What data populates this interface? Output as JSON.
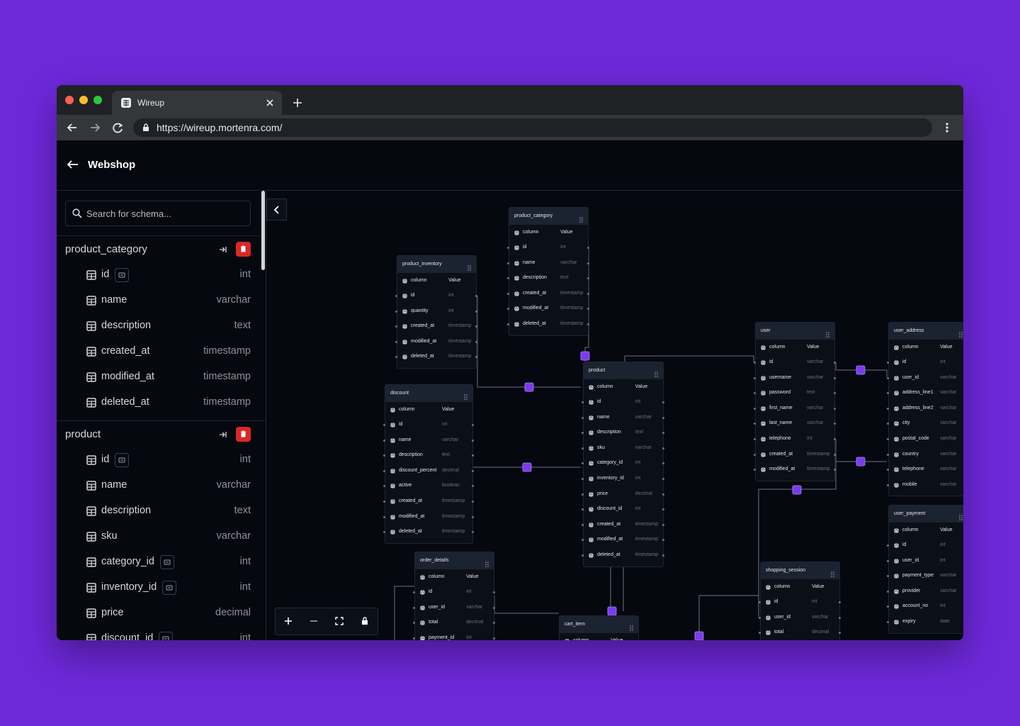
{
  "browser": {
    "tab_title": "Wireup",
    "url": "https://wireup.mortenra.com/"
  },
  "header": {
    "title": "Webshop"
  },
  "sidebar": {
    "search_placeholder": "Search for schema...",
    "tables": [
      {
        "name": "product_category",
        "fields": [
          {
            "name": "id",
            "type": "int",
            "key": true
          },
          {
            "name": "name",
            "type": "varchar"
          },
          {
            "name": "description",
            "type": "text"
          },
          {
            "name": "created_at",
            "type": "timestamp"
          },
          {
            "name": "modified_at",
            "type": "timestamp"
          },
          {
            "name": "deleted_at",
            "type": "timestamp"
          }
        ]
      },
      {
        "name": "product",
        "fields": [
          {
            "name": "id",
            "type": "int",
            "key": true
          },
          {
            "name": "name",
            "type": "varchar"
          },
          {
            "name": "description",
            "type": "text"
          },
          {
            "name": "sku",
            "type": "varchar"
          },
          {
            "name": "category_id",
            "type": "int",
            "key": true
          },
          {
            "name": "inventory_id",
            "type": "int",
            "key": true
          },
          {
            "name": "price",
            "type": "decimal"
          },
          {
            "name": "discount_id",
            "type": "int",
            "key": true
          }
        ]
      }
    ]
  },
  "canvas": {
    "tables": [
      {
        "name": "product_category",
        "header": [
          "column",
          "Value"
        ],
        "fields": [
          {
            "name": "id",
            "type": "int"
          },
          {
            "name": "name",
            "type": "varchar"
          },
          {
            "name": "description",
            "type": "text"
          },
          {
            "name": "created_at",
            "type": "timestamp"
          },
          {
            "name": "modified_at",
            "type": "timestamp"
          },
          {
            "name": "deleted_at",
            "type": "timestamp"
          }
        ]
      },
      {
        "name": "product_inventory",
        "header": [
          "column",
          "Value"
        ],
        "fields": [
          {
            "name": "id",
            "type": "int"
          },
          {
            "name": "quantity",
            "type": "int"
          },
          {
            "name": "created_at",
            "type": "timestamp"
          },
          {
            "name": "modified_at",
            "type": "timestamp"
          },
          {
            "name": "deleted_at",
            "type": "timestamp"
          }
        ]
      },
      {
        "name": "discount",
        "header": [
          "column",
          "Value"
        ],
        "fields": [
          {
            "name": "id",
            "type": "int"
          },
          {
            "name": "name",
            "type": "varchar"
          },
          {
            "name": "description",
            "type": "text"
          },
          {
            "name": "discount_percent",
            "type": "decimal"
          },
          {
            "name": "active",
            "type": "boolean"
          },
          {
            "name": "created_at",
            "type": "timestamp"
          },
          {
            "name": "modified_at",
            "type": "timestamp"
          },
          {
            "name": "deleted_at",
            "type": "timestamp"
          }
        ]
      },
      {
        "name": "product",
        "header": [
          "column",
          "Value"
        ],
        "fields": [
          {
            "name": "id",
            "type": "int"
          },
          {
            "name": "name",
            "type": "varchar"
          },
          {
            "name": "description",
            "type": "text"
          },
          {
            "name": "sku",
            "type": "varchar"
          },
          {
            "name": "category_id",
            "type": "int"
          },
          {
            "name": "inventory_id",
            "type": "int"
          },
          {
            "name": "price",
            "type": "decimal"
          },
          {
            "name": "discount_id",
            "type": "int"
          },
          {
            "name": "created_at",
            "type": "timestamp"
          },
          {
            "name": "modified_at",
            "type": "timestamp"
          },
          {
            "name": "deleted_at",
            "type": "timestamp"
          }
        ]
      },
      {
        "name": "user",
        "header": [
          "column",
          "Value"
        ],
        "fields": [
          {
            "name": "id",
            "type": "varchar"
          },
          {
            "name": "username",
            "type": "varchar"
          },
          {
            "name": "password",
            "type": "text"
          },
          {
            "name": "first_name",
            "type": "varchar"
          },
          {
            "name": "last_name",
            "type": "varchar"
          },
          {
            "name": "telephone",
            "type": "int"
          },
          {
            "name": "created_at",
            "type": "timestamp"
          },
          {
            "name": "modified_at",
            "type": "timestamp"
          }
        ]
      },
      {
        "name": "user_address",
        "header": [
          "column",
          "Value"
        ],
        "fields": [
          {
            "name": "id",
            "type": "int"
          },
          {
            "name": "user_id",
            "type": "varchar"
          },
          {
            "name": "address_line1",
            "type": "varchar"
          },
          {
            "name": "address_line2",
            "type": "varchar"
          },
          {
            "name": "city",
            "type": "varchar"
          },
          {
            "name": "postal_code",
            "type": "varchar"
          },
          {
            "name": "country",
            "type": "varchar"
          },
          {
            "name": "telephone",
            "type": "varchar"
          },
          {
            "name": "mobile",
            "type": "varchar"
          }
        ]
      },
      {
        "name": "user_payment",
        "header": [
          "column",
          "Value"
        ],
        "fields": [
          {
            "name": "id",
            "type": "int"
          },
          {
            "name": "user_id",
            "type": "int"
          },
          {
            "name": "payment_type",
            "type": "varchar"
          },
          {
            "name": "provider",
            "type": "varchar"
          },
          {
            "name": "account_no",
            "type": "int"
          },
          {
            "name": "expiry",
            "type": "date"
          }
        ]
      },
      {
        "name": "order_details",
        "header": [
          "column",
          "Value"
        ],
        "fields": [
          {
            "name": "id",
            "type": "int"
          },
          {
            "name": "user_id",
            "type": "varchar"
          },
          {
            "name": "total",
            "type": "decimal"
          },
          {
            "name": "payment_id",
            "type": "int"
          }
        ]
      },
      {
        "name": "shopping_session",
        "header": [
          "column",
          "Value"
        ],
        "fields": [
          {
            "name": "id",
            "type": "int"
          },
          {
            "name": "user_id",
            "type": "varchar"
          },
          {
            "name": "total",
            "type": "decimal"
          }
        ]
      },
      {
        "name": "cart_item",
        "header": [
          "column",
          "Value"
        ],
        "fields": []
      }
    ]
  }
}
